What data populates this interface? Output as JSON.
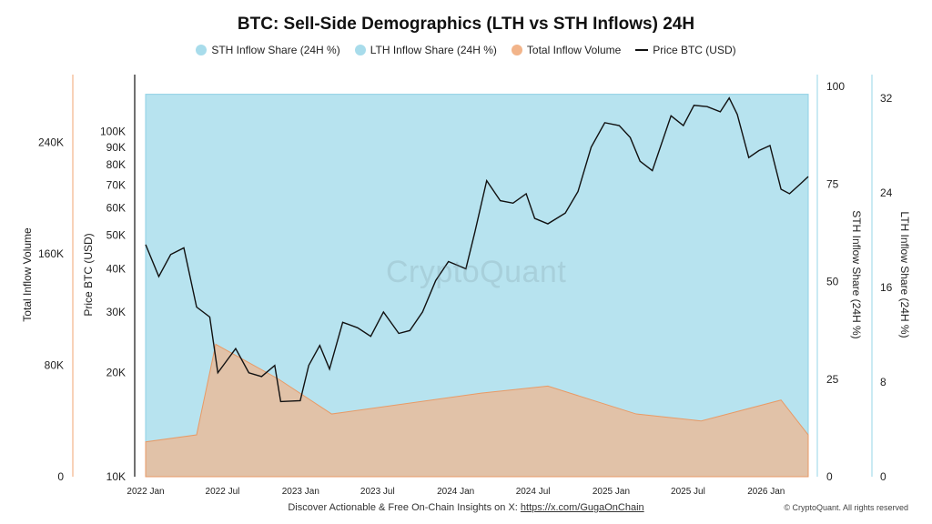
{
  "chart_data": {
    "type": "area",
    "title": "BTC: Sell-Side Demographics (LTH vs STH Inflows) 24H",
    "legend_placement": "top",
    "legend": [
      {
        "label": "STH Inflow Share (24H %)",
        "color": "#a8dceb"
      },
      {
        "label": "LTH Inflow Share (24H %)",
        "color": "#a8dceb"
      },
      {
        "label": "Total Inflow Volume",
        "color": "#f2b48a"
      },
      {
        "label": "Price BTC (USD)",
        "color": "#111111"
      }
    ],
    "axes": {
      "total_inflow": {
        "label": "Total Inflow Volume",
        "ticks": [
          "0",
          "80K",
          "160K",
          "240K"
        ],
        "range": [
          0,
          280000
        ]
      },
      "price": {
        "label": "Price BTC (USD)",
        "scale": "log",
        "ticks": [
          "10K",
          "20K",
          "30K",
          "40K",
          "50K",
          "60K",
          "70K",
          "80K",
          "90K",
          "100K"
        ],
        "range": [
          10000,
          135000
        ]
      },
      "sth_share": {
        "label": "STH Inflow Share (24H %)",
        "ticks": [
          "0",
          "25",
          "50",
          "75",
          "100"
        ],
        "range": [
          0,
          100
        ]
      },
      "lth_share": {
        "label": "LTH Inflow Share (24H %)",
        "ticks": [
          "0",
          "8",
          "16",
          "24",
          "32"
        ],
        "range": [
          0,
          33
        ]
      },
      "x": {
        "ticks": [
          "2022 Jan",
          "2022 Jul",
          "2023 Jan",
          "2023 Jul",
          "2024 Jan",
          "2024 Jul",
          "2025 Jan",
          "2025 Jul",
          "2026 Jan"
        ],
        "range": [
          "2022-01-01",
          "2026-04-10"
        ]
      }
    },
    "series": [
      {
        "name": "Price BTC (USD)",
        "x": [
          "2022-01-01",
          "2022-02-01",
          "2022-03-01",
          "2022-04-01",
          "2022-05-01",
          "2022-06-01",
          "2022-06-20",
          "2022-08-01",
          "2022-09-01",
          "2022-10-01",
          "2022-11-01",
          "2022-11-15",
          "2022-12-31",
          "2023-01-20",
          "2023-02-15",
          "2023-03-10",
          "2023-04-10",
          "2023-05-15",
          "2023-06-15",
          "2023-07-15",
          "2023-08-20",
          "2023-09-15",
          "2023-10-15",
          "2023-11-15",
          "2023-12-15",
          "2024-01-25",
          "2024-02-15",
          "2024-03-14",
          "2024-04-15",
          "2024-05-15",
          "2024-06-15",
          "2024-07-05",
          "2024-08-05",
          "2024-09-15",
          "2024-10-15",
          "2024-11-15",
          "2024-12-17",
          "2025-01-20",
          "2025-02-15",
          "2025-03-10",
          "2025-04-08",
          "2025-05-22",
          "2025-06-20",
          "2025-07-15",
          "2025-08-15",
          "2025-09-15",
          "2025-10-06",
          "2025-10-25",
          "2025-11-21",
          "2025-12-15",
          "2026-01-10",
          "2026-02-05",
          "2026-02-25",
          "2026-03-20",
          "2026-04-10"
        ],
        "values": [
          47000,
          38000,
          44000,
          46000,
          31000,
          29000,
          20000,
          23500,
          20000,
          19500,
          21000,
          16500,
          16600,
          21000,
          24000,
          20500,
          28000,
          27000,
          25500,
          30000,
          26000,
          26500,
          30000,
          37000,
          42000,
          40000,
          51000,
          72000,
          63000,
          62000,
          66000,
          56000,
          54000,
          58000,
          67000,
          90000,
          106000,
          104000,
          96000,
          82000,
          77000,
          111000,
          104000,
          119000,
          118000,
          114000,
          125000,
          112000,
          84000,
          88000,
          91000,
          68000,
          66000,
          70000,
          74000
        ]
      },
      {
        "name": "Total Inflow Volume",
        "x": [
          "2022-01-01",
          "2022-05-01",
          "2022-06-15",
          "2022-11-10",
          "2023-03-15",
          "2024-03-01",
          "2024-08-05",
          "2025-03-01",
          "2025-08-01",
          "2026-02-05",
          "2026-04-10"
        ],
        "values": [
          25000,
          30000,
          95000,
          70000,
          45000,
          60000,
          65000,
          45000,
          40000,
          55000,
          30000
        ]
      },
      {
        "name": "STH Inflow Share (24H %)",
        "x": [
          "2022-01-01",
          "2026-04-10"
        ],
        "values": [
          98,
          98
        ]
      }
    ]
  },
  "footer": {
    "text": "Discover Actionable & Free On-Chain Insights on X: ",
    "link": "https://x.com/GugaOnChain"
  },
  "copyright": "© CryptoQuant. All rights reserved",
  "watermark": "CryptoQuant"
}
